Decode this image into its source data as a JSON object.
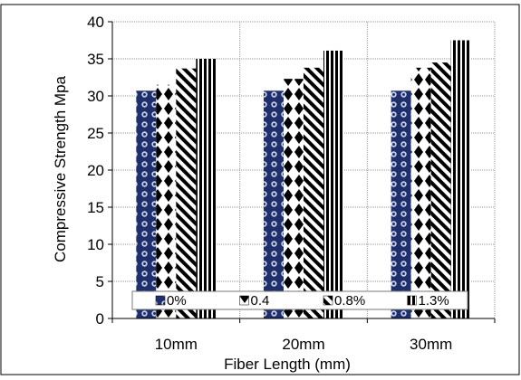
{
  "chart_data": {
    "type": "bar",
    "xlabel": "Fiber Length (mm)",
    "ylabel": "Compressive Strength Mpa",
    "ylim": [
      0,
      40
    ],
    "yticks": [
      0,
      5,
      10,
      15,
      20,
      25,
      30,
      35,
      40
    ],
    "grid": true,
    "legend_position": "bottom-inside",
    "categories": [
      "10mm",
      "20mm",
      "30mm"
    ],
    "series": [
      {
        "name": "0%",
        "values": [
          30.7,
          30.7,
          30.7
        ],
        "pattern": "navy-dots"
      },
      {
        "name": "0.4",
        "values": [
          31.5,
          32.3,
          33.8
        ],
        "pattern": "diamonds"
      },
      {
        "name": "0.8%",
        "values": [
          33.7,
          33.8,
          34.5
        ],
        "pattern": "diagonal-stripes"
      },
      {
        "name": "1.3%",
        "values": [
          35.0,
          36.1,
          37.5
        ],
        "pattern": "vertical-stripes"
      }
    ]
  },
  "colors": {
    "navy": "#1f2f6b",
    "black": "#000000",
    "axis": "#000000",
    "grid": "#9a9a9a"
  }
}
